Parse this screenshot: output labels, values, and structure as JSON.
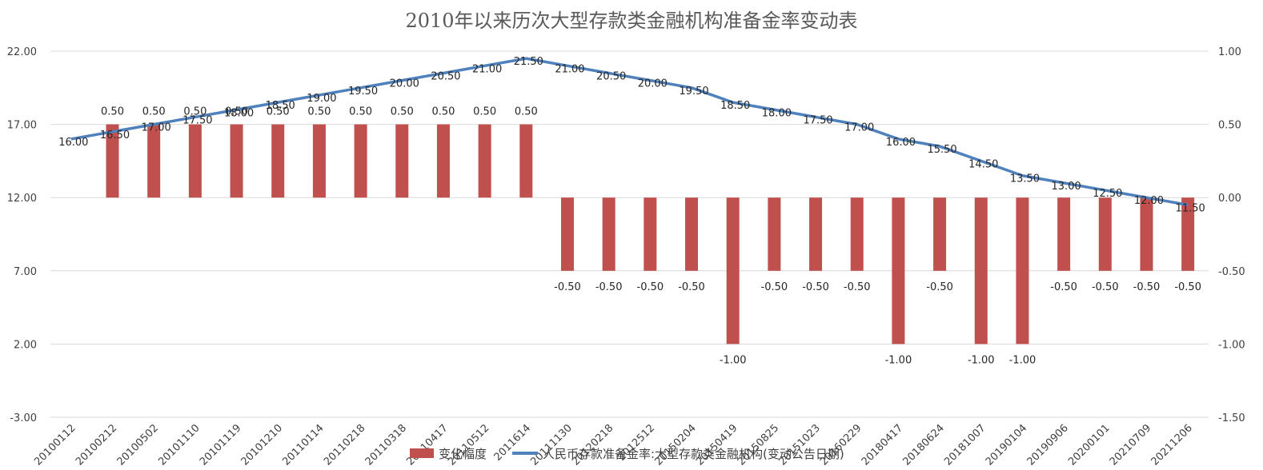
{
  "chart_data": {
    "type": "bar+line",
    "title": "2010年以来历次大型存款类金融机构准备金率变动表",
    "categories": [
      "20100112",
      "20100212",
      "20100502",
      "20101110",
      "20101119",
      "20101210",
      "20110114",
      "20110218",
      "20110318",
      "20110417",
      "20110512",
      "2011614",
      "20111130",
      "20120218",
      "2012512",
      "20150204",
      "20150419",
      "20150825",
      "20151023",
      "20160229",
      "20180417",
      "20180624",
      "20181007",
      "20190104",
      "20190906",
      "20200101",
      "20210709",
      "20211206"
    ],
    "left_axis": {
      "min": -3,
      "max": 22,
      "ticks": [
        "22.00",
        "17.00",
        "12.00",
        "7.00",
        "2.00",
        "-3.00"
      ]
    },
    "right_axis": {
      "min": -1.5,
      "max": 1,
      "ticks": [
        "1.00",
        "0.50",
        "0.00",
        "-0.50",
        "-1.00",
        "-1.50"
      ]
    },
    "series": [
      {
        "name": "变化幅度",
        "kind": "bar",
        "axis": "right",
        "color": "#C0504D",
        "values": [
          null,
          0.5,
          0.5,
          0.5,
          0.5,
          0.5,
          0.5,
          0.5,
          0.5,
          0.5,
          0.5,
          0.5,
          -0.5,
          -0.5,
          -0.5,
          -0.5,
          -1.0,
          -0.5,
          -0.5,
          -0.5,
          -1.0,
          -0.5,
          -1.0,
          -1.0,
          -0.5,
          -0.5,
          -0.5,
          -0.5
        ],
        "labels": [
          "",
          "0.50",
          "0.50",
          "0.50",
          "0.50",
          "0.50",
          "0.50",
          "0.50",
          "0.50",
          "0.50",
          "0.50",
          "0.50",
          "-0.50",
          "-0.50",
          "-0.50",
          "-0.50",
          "-1.00",
          "-0.50",
          "-0.50",
          "-0.50",
          "-1.00",
          "-0.50",
          "-1.00",
          "-1.00",
          "-0.50",
          "-0.50",
          "-0.50",
          "-0.50"
        ]
      },
      {
        "name": "人民币存款准备金率:大型存款类金融机构(变动公告日期)",
        "kind": "line",
        "axis": "left",
        "color": "#4F81BD",
        "values": [
          16.0,
          16.5,
          17.0,
          17.5,
          18.0,
          18.5,
          19.0,
          19.5,
          20.0,
          20.5,
          21.0,
          21.5,
          21.0,
          20.5,
          20.0,
          19.5,
          18.5,
          18.0,
          17.5,
          17.0,
          16.0,
          15.5,
          14.5,
          13.5,
          13.0,
          12.5,
          12.0,
          11.5
        ],
        "labels": [
          "16.00",
          "16.50",
          "17.00",
          "17.50",
          "18.00",
          "18.50",
          "19.00",
          "19.50",
          "20.00",
          "20.50",
          "21.00",
          "21.50",
          "21.00",
          "20.50",
          "20.00",
          "19.50",
          "18.50",
          "18.00",
          "17.50",
          "17.00",
          "16.00",
          "15.50",
          "14.50",
          "13.50",
          "13.00",
          "12.50",
          "12.00",
          "11.50"
        ]
      }
    ],
    "legend_position": "bottom"
  }
}
